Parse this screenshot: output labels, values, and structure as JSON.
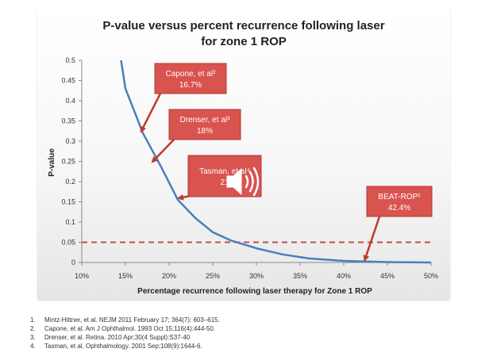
{
  "chart_data": {
    "type": "line",
    "title_lines": [
      "P-value versus percent recurrence following laser",
      "for zone 1 ROP"
    ],
    "xlabel": "Percentage recurrence following laser therapy for Zone 1 ROP",
    "ylabel": "P-value",
    "xlim": [
      10,
      50
    ],
    "ylim": [
      0,
      0.5
    ],
    "x_ticks": [
      10,
      15,
      20,
      25,
      30,
      35,
      40,
      45,
      50
    ],
    "x_tick_labels": [
      "10%",
      "15%",
      "20%",
      "25%",
      "30%",
      "35%",
      "40%",
      "45%",
      "50%"
    ],
    "y_ticks": [
      0,
      0.05,
      0.1,
      0.15,
      0.2,
      0.25,
      0.3,
      0.35,
      0.4,
      0.45,
      0.5
    ],
    "y_tick_labels": [
      "0",
      "0.05",
      "0.1",
      "0.15",
      "0.2",
      "0.25",
      "0.3",
      "0.35",
      "0.4",
      "0.45",
      "0.5"
    ],
    "series": [
      {
        "color": "#4a7ebb",
        "x": [
          14.5,
          15,
          17,
          19,
          21,
          23,
          25,
          27,
          30,
          33,
          36,
          40,
          45,
          50
        ],
        "y": [
          0.5,
          0.43,
          0.32,
          0.24,
          0.155,
          0.11,
          0.075,
          0.055,
          0.035,
          0.02,
          0.01,
          0.004,
          0.001,
          0.0
        ]
      }
    ],
    "reference_line": {
      "y": 0.05,
      "color": "#c0504d",
      "style": "dashed"
    },
    "annotations": [
      {
        "lines": [
          "Capone, et al²",
          "16.7%"
        ],
        "x": 16.7,
        "y": 0.32
      },
      {
        "lines": [
          "Drenser, et al³",
          "18%"
        ],
        "x": 18,
        "y": 0.245
      },
      {
        "lines": [
          "Tasman, et al⁴",
          "21"
        ],
        "x": 21,
        "y": 0.155
      },
      {
        "lines": [
          "BEAT-ROP¹",
          "42.4%"
        ],
        "x": 42.4,
        "y": 0.0
      }
    ],
    "callout_color": "#d9534f",
    "grid": false,
    "legend": "none"
  },
  "footnotes": [
    {
      "num": "1.",
      "text": "Mintz-Hittner, et al.  NEJM 2011 February 17; 364(7): 603–615."
    },
    {
      "num": "2.",
      "text": "Capone, et al. Am J Ophthalmol. 1993 Oct 15;116(4):444-50."
    },
    {
      "num": "3.",
      "text": "Drenser, et al. Retina. 2010 Apr;30(4 Suppl):S37-40"
    },
    {
      "num": "4.",
      "text": "Tasman, et al. Ophthalmology. 2001 Sep;108(9):1644-6."
    }
  ],
  "overlay": {
    "icon": "speaker-icon"
  }
}
